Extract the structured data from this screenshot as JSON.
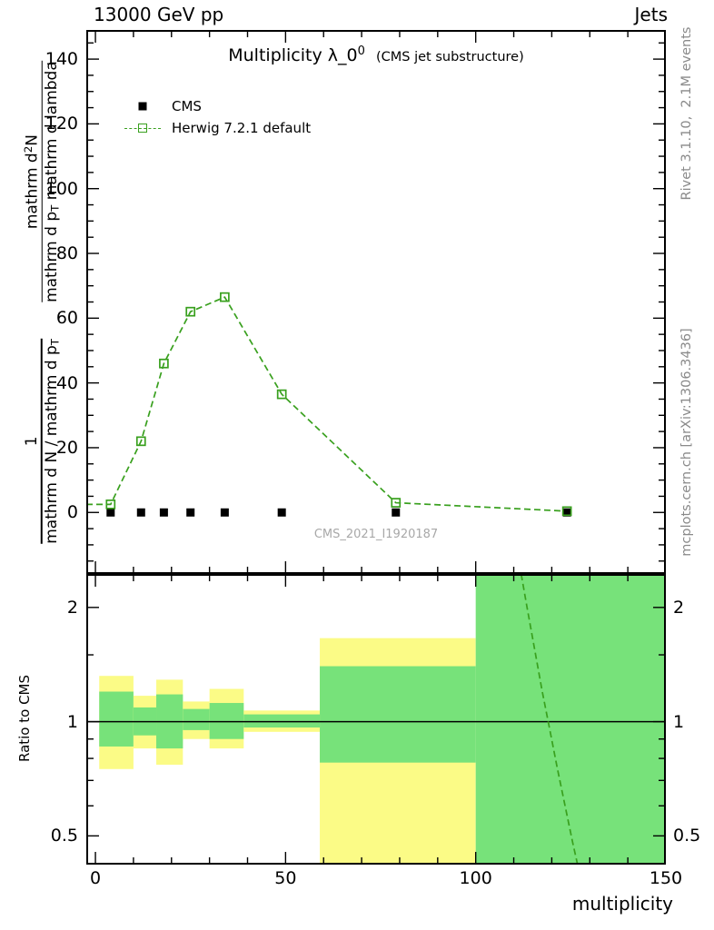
{
  "header": {
    "left_title": "13000 GeV pp",
    "right_title": "Jets"
  },
  "side": {
    "rivet": "Rivet 3.1.10,  2.1M events",
    "mcplots": "mcplots.cern.ch [arXiv:1306.3436]"
  },
  "main": {
    "title": "Multiplicity λ_0",
    "title_sup": "0",
    "title_note": "(CMS jet substructure)",
    "watermark": "CMS_2021_I1920187",
    "legend": {
      "cms": "CMS",
      "herwig": "Herwig 7.2.1 default"
    },
    "ylabel": {
      "frac1_num": "1",
      "frac1_den_a": "mathrm d N / mathrm d p",
      "frac1_den_sub": "T",
      "frac2_num_a": "mathrm d",
      "frac2_num_sup": "2",
      "frac2_num_b": "N",
      "frac2_den_a": "mathrm d p",
      "frac2_den_sub": "T",
      "frac2_den_b": " mathrm d lambda"
    }
  },
  "ratio": {
    "ylabel": "Ratio to CMS"
  },
  "xlabel": "multiplicity",
  "colors": {
    "herwig_line": "#39a01e",
    "band_yellow": "#fbfb86",
    "band_green": "#77e27a",
    "gray_text": "#8a8a8a",
    "watermark": "#a8a8a8",
    "cms_marker": "#000000"
  },
  "chart_data": [
    {
      "type": "line",
      "panel": "main",
      "title": "Multiplicity λ_0^0 (CMS jet substructure)",
      "xlabel": "multiplicity",
      "ylabel": "1/(mathrm dN/mathrm dp_T) mathrm d^2N/(mathrm dp_T mathrm dlambda)",
      "xlim": [
        -2.4,
        150
      ],
      "ylim": [
        -19,
        149
      ],
      "xticks_major": [
        0,
        50,
        100,
        150
      ],
      "xticks_minor_step": 10,
      "yticks_major": [
        0,
        20,
        40,
        60,
        80,
        100,
        120,
        140
      ],
      "yticks_minor_step": 5,
      "grid": false,
      "legend_position": "upper-left",
      "series": [
        {
          "name": "CMS",
          "style": "scatter",
          "marker": "filled-square",
          "x": [
            4,
            12,
            18,
            25,
            34,
            49,
            79,
            124
          ],
          "y": [
            0,
            0,
            0,
            0,
            0,
            0,
            0,
            0
          ]
        },
        {
          "name": "Herwig 7.2.1 default",
          "style": "dashed-line-with-open-square-markers",
          "x": [
            4,
            12,
            18,
            25,
            34,
            49,
            79,
            124
          ],
          "y": [
            2.5,
            22,
            46,
            62,
            66.5,
            36.5,
            3,
            0.4
          ]
        }
      ]
    },
    {
      "type": "ratio-bands",
      "panel": "ratio",
      "ylabel": "Ratio to CMS",
      "yscale": "log",
      "xlim": [
        -2.4,
        150
      ],
      "ylim": [
        0.42,
        2.45
      ],
      "xticks_major": [
        0,
        50,
        100,
        150
      ],
      "xticks_minor_step": 10,
      "yticks_major": [
        0.5,
        1,
        2
      ],
      "yticks_minor": [
        0.6,
        0.7,
        0.8,
        0.9,
        1.5
      ],
      "baseline": 1,
      "bands": [
        {
          "x0": 1,
          "x1": 10,
          "yellow": [
            0.75,
            1.32
          ],
          "green": [
            0.86,
            1.2
          ]
        },
        {
          "x0": 10,
          "x1": 16,
          "yellow": [
            0.85,
            1.17
          ],
          "green": [
            0.92,
            1.09
          ]
        },
        {
          "x0": 16,
          "x1": 23,
          "yellow": [
            0.77,
            1.29
          ],
          "green": [
            0.85,
            1.18
          ]
        },
        {
          "x0": 23,
          "x1": 30,
          "yellow": [
            0.9,
            1.13
          ],
          "green": [
            0.95,
            1.08
          ]
        },
        {
          "x0": 30,
          "x1": 39,
          "yellow": [
            0.85,
            1.22
          ],
          "green": [
            0.9,
            1.12
          ]
        },
        {
          "x0": 39,
          "x1": 59,
          "yellow": [
            0.94,
            1.07
          ],
          "green": [
            0.965,
            1.045
          ]
        },
        {
          "x0": 59,
          "x1": 100,
          "yellow": [
            0.38,
            1.66
          ],
          "green": [
            0.78,
            1.4
          ]
        },
        {
          "x0": 100,
          "x1": 150,
          "yellow": null,
          "green": [
            0.38,
            2.6
          ]
        }
      ],
      "herwig_ratio_line": {
        "x": [
          111.5,
          113.5,
          115.5,
          117.5,
          119.5,
          121.5,
          123.5,
          125.5,
          127.5
        ],
        "y": [
          2.6,
          2.0,
          1.55,
          1.2,
          0.95,
          0.75,
          0.6,
          0.48,
          0.39
        ]
      }
    }
  ]
}
